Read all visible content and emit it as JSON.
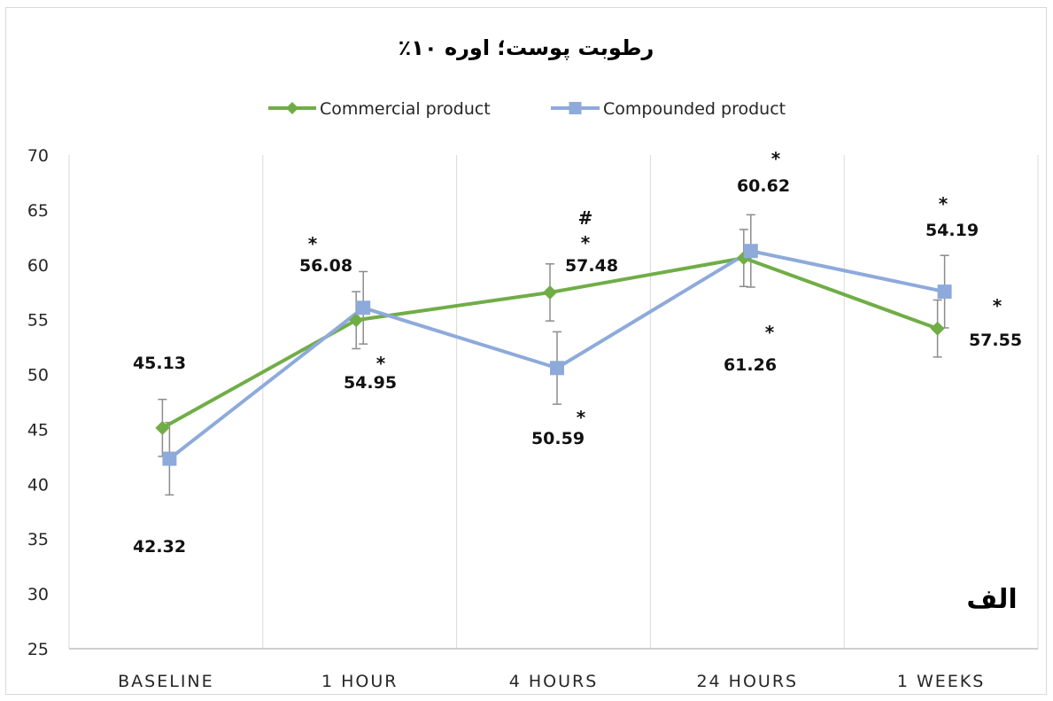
{
  "chart_data": {
    "type": "line",
    "title": "رطوبت پوست؛ اوره ۱۰٪",
    "panel_label": "الف",
    "categories": [
      "BASELINE",
      "1 HOUR",
      "4 HOURS",
      "24 HOURS",
      "1 WEEKS"
    ],
    "ylim": [
      25,
      70
    ],
    "yticks": [
      25,
      30,
      35,
      40,
      45,
      50,
      55,
      60,
      65,
      70
    ],
    "grid": "vertical",
    "legend_position": "top",
    "series": [
      {
        "name": "Commercial product",
        "color": "#70ad47",
        "marker": "diamond",
        "values": [
          45.13,
          54.95,
          57.48,
          60.62,
          54.19
        ],
        "error": [
          2.6,
          2.6,
          2.6,
          2.6,
          2.6
        ]
      },
      {
        "name": "Compounded product",
        "color": "#8eaadb",
        "marker": "square",
        "values": [
          42.32,
          56.08,
          50.59,
          61.26,
          57.55
        ],
        "error": [
          3.3,
          3.3,
          3.3,
          3.3,
          3.3
        ]
      }
    ],
    "data_labels": [
      "45.13",
      "42.32",
      "56.08",
      "54.95",
      "57.48",
      "50.59",
      "60.62",
      "61.26",
      "54.19",
      "57.55"
    ],
    "annotations": [
      "*",
      "*",
      "*",
      "#",
      "*",
      "*",
      "*",
      "*",
      "*",
      "*"
    ]
  }
}
